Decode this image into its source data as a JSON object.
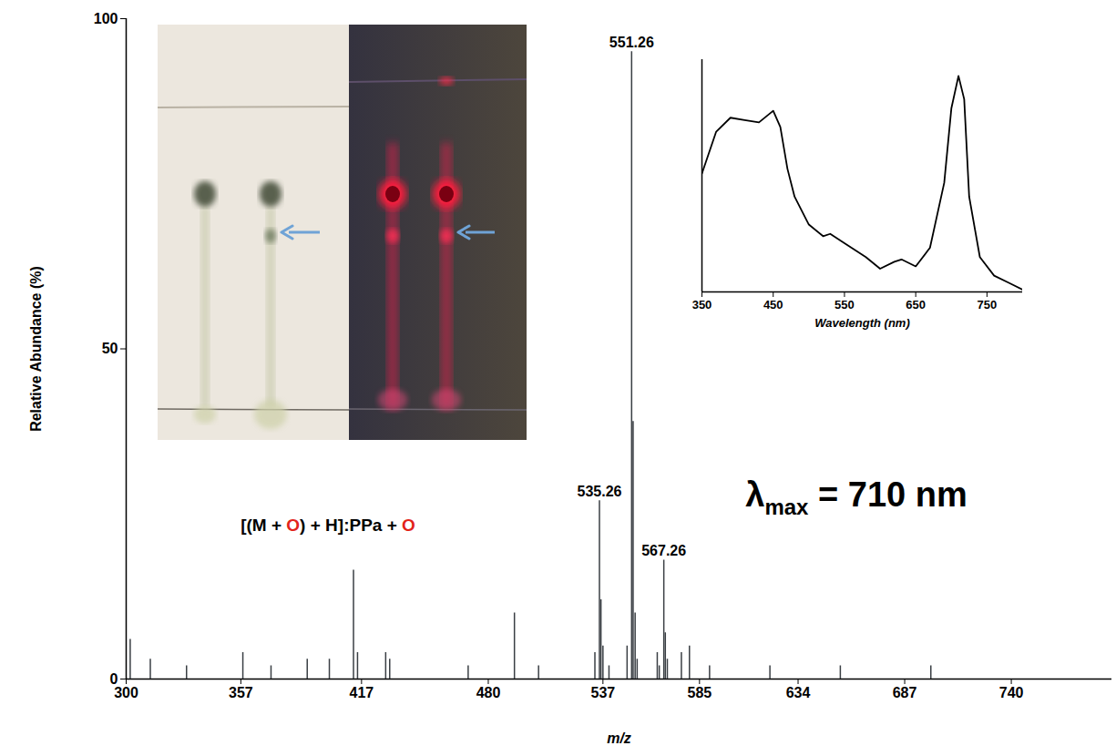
{
  "chart_data": [
    {
      "type": "bar",
      "x": [
        302,
        312,
        330,
        358,
        372,
        390,
        401,
        413,
        415,
        429,
        431,
        470,
        493,
        505,
        533,
        535.26,
        536,
        537,
        540,
        549,
        551.26,
        552,
        553,
        554,
        564,
        565,
        567.26,
        568,
        569,
        576,
        580,
        590,
        620,
        655,
        700
      ],
      "values": [
        6,
        3,
        2,
        4,
        2,
        3,
        3,
        16.5,
        4,
        4,
        3,
        2,
        10,
        2,
        4,
        27,
        12,
        5,
        2,
        5,
        95,
        39,
        10,
        3,
        4,
        2,
        18,
        7,
        3,
        4,
        5,
        2,
        2,
        2,
        2
      ],
      "color": "#3a3f44",
      "xlim": [
        300,
        790
      ],
      "xticks": [
        300,
        357,
        417,
        480,
        537,
        585,
        634,
        687,
        740
      ],
      "ylim": [
        0,
        100
      ],
      "yticks": [
        0,
        50,
        100
      ],
      "xlabel": "m/z",
      "ylabel": "Relative Abundance (%)",
      "annotations": [
        {
          "text": "551.26",
          "x": 551.26,
          "y": 95
        },
        {
          "text": "535.26",
          "x": 535.26,
          "y": 27
        },
        {
          "text": "567.26",
          "x": 567.26,
          "y": 18
        },
        {
          "text": "[(M + O) + H]:PPa + O"
        }
      ]
    },
    {
      "type": "line",
      "x": [
        350,
        370,
        390,
        410,
        430,
        450,
        460,
        470,
        480,
        500,
        520,
        530,
        550,
        580,
        600,
        620,
        630,
        650,
        670,
        690,
        700,
        710,
        718,
        725,
        740,
        760,
        780,
        800
      ],
      "values": [
        0.51,
        0.69,
        0.75,
        0.74,
        0.73,
        0.78,
        0.71,
        0.53,
        0.41,
        0.29,
        0.24,
        0.25,
        0.21,
        0.15,
        0.1,
        0.13,
        0.14,
        0.11,
        0.19,
        0.47,
        0.79,
        0.93,
        0.83,
        0.41,
        0.15,
        0.07,
        0.04,
        0.01
      ],
      "color": "#000000",
      "xlim": [
        350,
        800
      ],
      "xticks": [
        350,
        450,
        550,
        650,
        750
      ],
      "ylim": [
        0,
        1
      ],
      "xlabel": "Wavelength (nm)",
      "tick_labels": "x",
      "annotations": [
        {
          "text": "λmax = 710 nm"
        }
      ]
    }
  ]
}
